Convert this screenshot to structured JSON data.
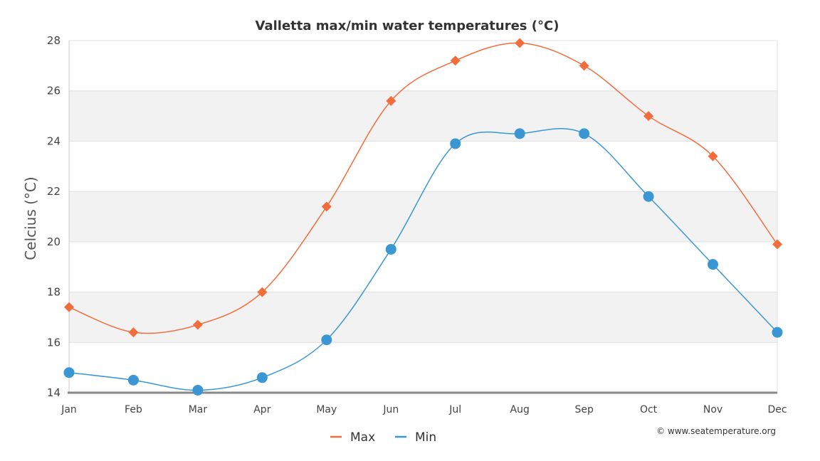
{
  "chart_data": {
    "type": "line",
    "title": "Valletta max/min water temperatures (°C)",
    "xlabel": "",
    "ylabel": "Celcius (°C)",
    "categories": [
      "Jan",
      "Feb",
      "Mar",
      "Apr",
      "May",
      "Jun",
      "Jul",
      "Aug",
      "Sep",
      "Oct",
      "Nov",
      "Dec"
    ],
    "series": [
      {
        "name": "Max",
        "color": "#f36d3c",
        "marker": "diamond",
        "values": [
          17.4,
          16.4,
          16.7,
          18.0,
          21.4,
          25.6,
          27.2,
          27.9,
          27.0,
          25.0,
          23.4,
          19.9
        ]
      },
      {
        "name": "Min",
        "color": "#3a97d4",
        "marker": "circle",
        "values": [
          14.8,
          14.5,
          14.1,
          14.6,
          16.1,
          19.7,
          23.9,
          24.3,
          24.3,
          21.8,
          19.1,
          16.4
        ]
      }
    ],
    "ylim": [
      14,
      28
    ],
    "yticks": [
      "14",
      "16",
      "18",
      "20",
      "22",
      "24",
      "26",
      "28"
    ],
    "grid": true,
    "banded_background": true,
    "legend_position": "bottom-center",
    "credit": "© www.seatemperature.org"
  }
}
